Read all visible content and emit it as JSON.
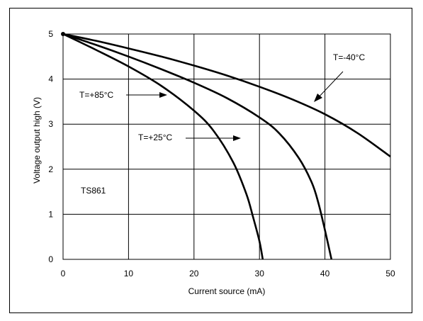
{
  "chart_data": {
    "type": "line",
    "xlabel": "Current source (mA)",
    "ylabel": "Voltage output high  (V)",
    "xlim": [
      0,
      50
    ],
    "ylim": [
      0,
      5
    ],
    "x_ticks": [
      "0",
      "10",
      "20",
      "30",
      "40",
      "50"
    ],
    "y_ticks": [
      "0",
      "1",
      "2",
      "3",
      "4",
      "5"
    ],
    "grid": true,
    "series": [
      {
        "name": "T=-40°C",
        "x": [
          0,
          5,
          10,
          15,
          20,
          25,
          30,
          35,
          40,
          45,
          50
        ],
        "y": [
          5.0,
          4.85,
          4.68,
          4.5,
          4.3,
          4.08,
          3.83,
          3.55,
          3.22,
          2.8,
          2.28
        ]
      },
      {
        "name": "T=+25°C",
        "x": [
          0,
          5,
          10,
          15,
          20,
          25,
          30,
          33,
          36,
          38,
          39,
          40,
          41
        ],
        "y": [
          5.0,
          4.76,
          4.5,
          4.22,
          3.92,
          3.58,
          3.15,
          2.8,
          2.25,
          1.7,
          1.25,
          0.65,
          0.0
        ]
      },
      {
        "name": "T=+85°C",
        "x": [
          0,
          5,
          10,
          15,
          20,
          23,
          26,
          28,
          29,
          30,
          30.5
        ],
        "y": [
          5.0,
          4.65,
          4.28,
          3.85,
          3.3,
          2.85,
          2.15,
          1.45,
          0.95,
          0.4,
          0.0
        ]
      }
    ],
    "annotations": [
      {
        "text": "T=+85°C"
      },
      {
        "text": "T=+25°C"
      },
      {
        "text": "T=-40°C"
      },
      {
        "text": "TS861"
      }
    ]
  }
}
